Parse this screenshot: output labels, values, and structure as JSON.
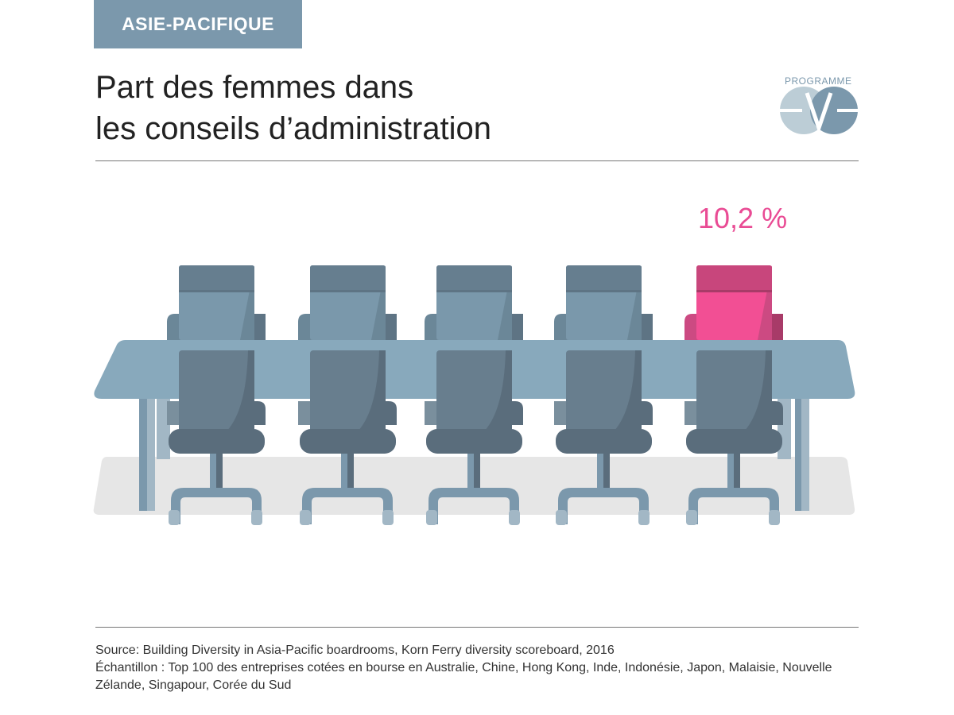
{
  "region_tag": "ASIE-PACIFIQUE",
  "title": {
    "line1": "Part des femmes dans",
    "line2": "les conseils d’administration"
  },
  "logo": {
    "text": "PROGRAMME",
    "wordmark": "eve"
  },
  "highlight_value": "10,2 %",
  "chairs": {
    "total": 5,
    "highlighted_index": 4,
    "highlight_color": "#f24f94",
    "default_color": "#7a98ab"
  },
  "footer": {
    "source": "Source: Building Diversity in Asia-Pacific boardrooms, Korn Ferry diversity scoreboard, 2016",
    "sample": "Échantillon : Top 100 des entreprises cotées en bourse en Australie, Chine, Hong Kong, Inde, Indonésie, Japon, Malaisie, Nouvelle Zélande, Singapour, Corée du Sud"
  }
}
